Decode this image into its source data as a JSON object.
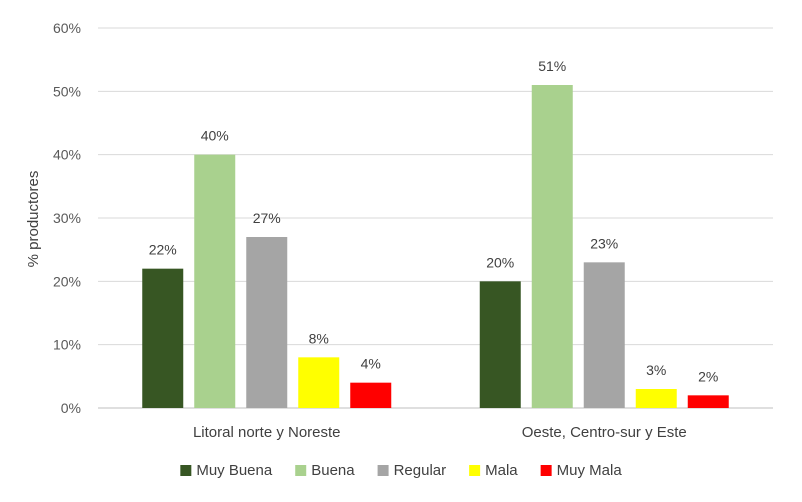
{
  "chart_data": {
    "type": "bar",
    "ylabel": "% productores",
    "xlabel": "",
    "ylim": [
      0,
      60
    ],
    "y_ticks": [
      "0%",
      "10%",
      "20%",
      "30%",
      "40%",
      "50%",
      "60%"
    ],
    "grid": true,
    "legend_position": "bottom",
    "categories": [
      "Litoral norte y Noreste",
      "Oeste, Centro-sur y Este"
    ],
    "series": [
      {
        "name": "Muy Buena",
        "color": "#375623",
        "values": [
          22,
          20
        ],
        "labels": [
          "22%",
          "20%"
        ]
      },
      {
        "name": "Buena",
        "color": "#A9D18E",
        "values": [
          40,
          51
        ],
        "labels": [
          "40%",
          "51%"
        ]
      },
      {
        "name": "Regular",
        "color": "#A5A5A5",
        "values": [
          27,
          23
        ],
        "labels": [
          "27%",
          "23%"
        ]
      },
      {
        "name": "Mala",
        "color": "#FFFF00",
        "values": [
          8,
          3
        ],
        "labels": [
          "8%",
          "3%"
        ]
      },
      {
        "name": "Muy Mala",
        "color": "#FF0000",
        "values": [
          4,
          2
        ],
        "labels": [
          "4%",
          "2%"
        ]
      }
    ]
  }
}
